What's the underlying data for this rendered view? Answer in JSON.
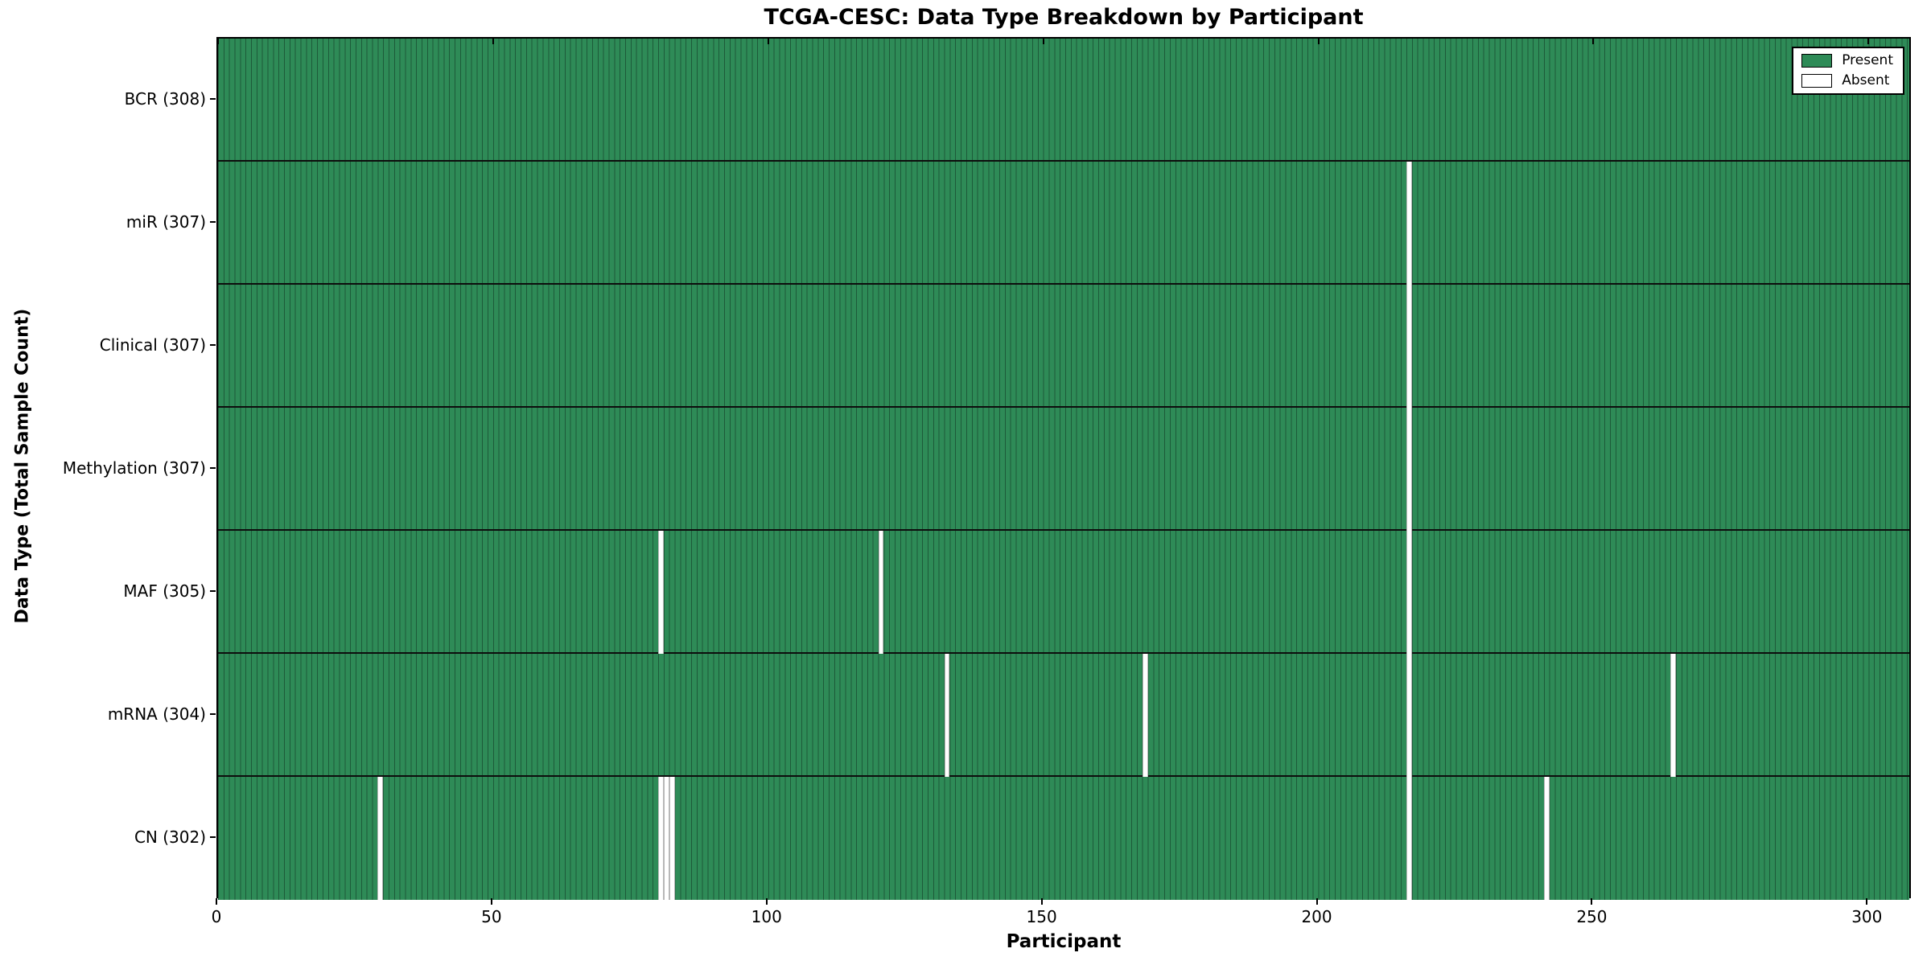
{
  "chart_data": {
    "type": "heatmap",
    "title": "TCGA-CESC: Data Type Breakdown by Participant",
    "xlabel": "Participant",
    "ylabel": "Data Type (Total Sample Count)",
    "x_ticks": [
      "0",
      "50",
      "100",
      "150",
      "200",
      "250",
      "300"
    ],
    "x_tick_values": [
      0,
      50,
      100,
      150,
      200,
      250,
      300
    ],
    "xlim": [
      0,
      308
    ],
    "n_participants": 308,
    "grid": "row-separators-only",
    "rows": [
      {
        "label": "BCR (308)",
        "data_type": "BCR",
        "total_samples": 308,
        "absent_participants": []
      },
      {
        "label": "miR (307)",
        "data_type": "miR",
        "total_samples": 307,
        "absent_participants": [
          216
        ]
      },
      {
        "label": "Clinical (307)",
        "data_type": "Clinical",
        "total_samples": 307,
        "absent_participants": [
          216
        ]
      },
      {
        "label": "Methylation (307)",
        "data_type": "Methylation",
        "total_samples": 307,
        "absent_participants": [
          216
        ]
      },
      {
        "label": "MAF (305)",
        "data_type": "MAF",
        "total_samples": 305,
        "absent_participants": [
          80,
          120,
          216
        ]
      },
      {
        "label": "mRNA (304)",
        "data_type": "mRNA",
        "total_samples": 304,
        "absent_participants": [
          132,
          168,
          216,
          264
        ]
      },
      {
        "label": "CN (302)",
        "data_type": "CN",
        "total_samples": 302,
        "absent_participants": [
          29,
          80,
          81,
          82,
          216,
          241
        ]
      }
    ],
    "legend": {
      "position": "upper right",
      "entries": [
        {
          "label": "Present",
          "color": "#2e8b57"
        },
        {
          "label": "Absent",
          "color": "#ffffff"
        }
      ]
    },
    "colors": {
      "present_fill": "#2e8b57",
      "bar_edge": "#1d5a39",
      "absent_fill": "#ffffff",
      "absent_edge": "#b8b8b8",
      "row_separator": "#0d0d0d",
      "spine": "#000000"
    }
  }
}
